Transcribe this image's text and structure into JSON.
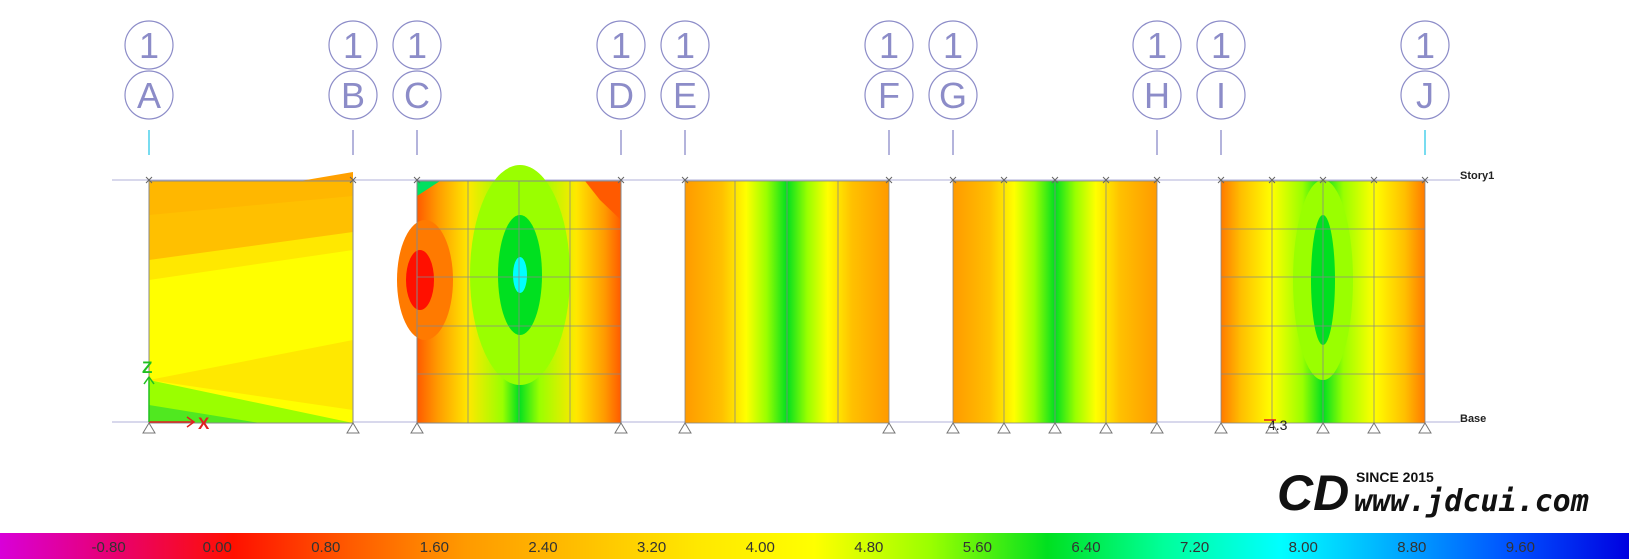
{
  "grid_bubbles": [
    {
      "top": "1",
      "bottom": "A"
    },
    {
      "top": "1",
      "bottom": "B"
    },
    {
      "top": "1",
      "bottom": "C"
    },
    {
      "top": "1",
      "bottom": "D"
    },
    {
      "top": "1",
      "bottom": "E"
    },
    {
      "top": "1",
      "bottom": "F"
    },
    {
      "top": "1",
      "bottom": "G"
    },
    {
      "top": "1",
      "bottom": "H"
    },
    {
      "top": "1",
      "bottom": "I"
    },
    {
      "top": "1",
      "bottom": "J"
    }
  ],
  "story_labels": {
    "top": "Story1",
    "bottom": "Base"
  },
  "axes": {
    "x": "X",
    "z": "Z"
  },
  "point_value": "4.3",
  "logo": {
    "mark": "CD",
    "since": "SINCE 2015",
    "url": "www.jdcui.com"
  },
  "legend": {
    "ticks": [
      "-0.80",
      "0.00",
      "0.80",
      "1.60",
      "2.40",
      "3.20",
      "4.00",
      "4.80",
      "5.60",
      "6.40",
      "7.20",
      "8.00",
      "8.80",
      "9.60"
    ],
    "colors": [
      "#d800d8",
      "#e8006e",
      "#ff1000",
      "#ff5a00",
      "#ff9a00",
      "#ffc000",
      "#ffe800",
      "#ffff00",
      "#9aff00",
      "#00e020",
      "#00ff9a",
      "#00ffff",
      "#00aaff",
      "#0050ff",
      "#0000e0"
    ]
  },
  "colors": {
    "grid_line": "#8c8cc8",
    "frame_line": "#888888",
    "axis_x": "#e02020",
    "axis_z": "#20c020",
    "dash": "#30c8e8"
  }
}
